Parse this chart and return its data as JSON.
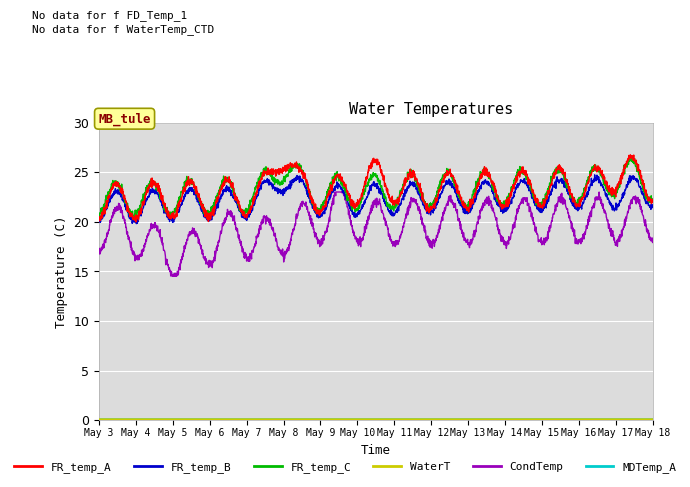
{
  "title": "Water Temperatures",
  "xlabel": "Time",
  "ylabel": "Temperature (C)",
  "ylim": [
    0,
    30
  ],
  "yticks": [
    0,
    5,
    10,
    15,
    20,
    25,
    30
  ],
  "background_color": "#dcdcdc",
  "fig_background": "#ffffff",
  "annotations": [
    "No data for f FD_Temp_1",
    "No data for f WaterTemp_CTD"
  ],
  "mb_tule_label": "MB_tule",
  "legend_entries": [
    {
      "label": "FR_temp_A",
      "color": "#ff0000"
    },
    {
      "label": "FR_temp_B",
      "color": "#0000cc"
    },
    {
      "label": "FR_temp_C",
      "color": "#00bb00"
    },
    {
      "label": "WaterT",
      "color": "#cccc00"
    },
    {
      "label": "CondTemp",
      "color": "#9900bb"
    },
    {
      "label": "MDTemp_A",
      "color": "#00cccc"
    }
  ],
  "xtick_labels": [
    "May 3",
    "May 4",
    "May 5",
    "May 6",
    "May 7",
    "May 8",
    "May 9",
    "May 10",
    "May 11",
    "May 12",
    "May 13",
    "May 14",
    "May 15",
    "May 16",
    "May 17",
    "May 18"
  ]
}
